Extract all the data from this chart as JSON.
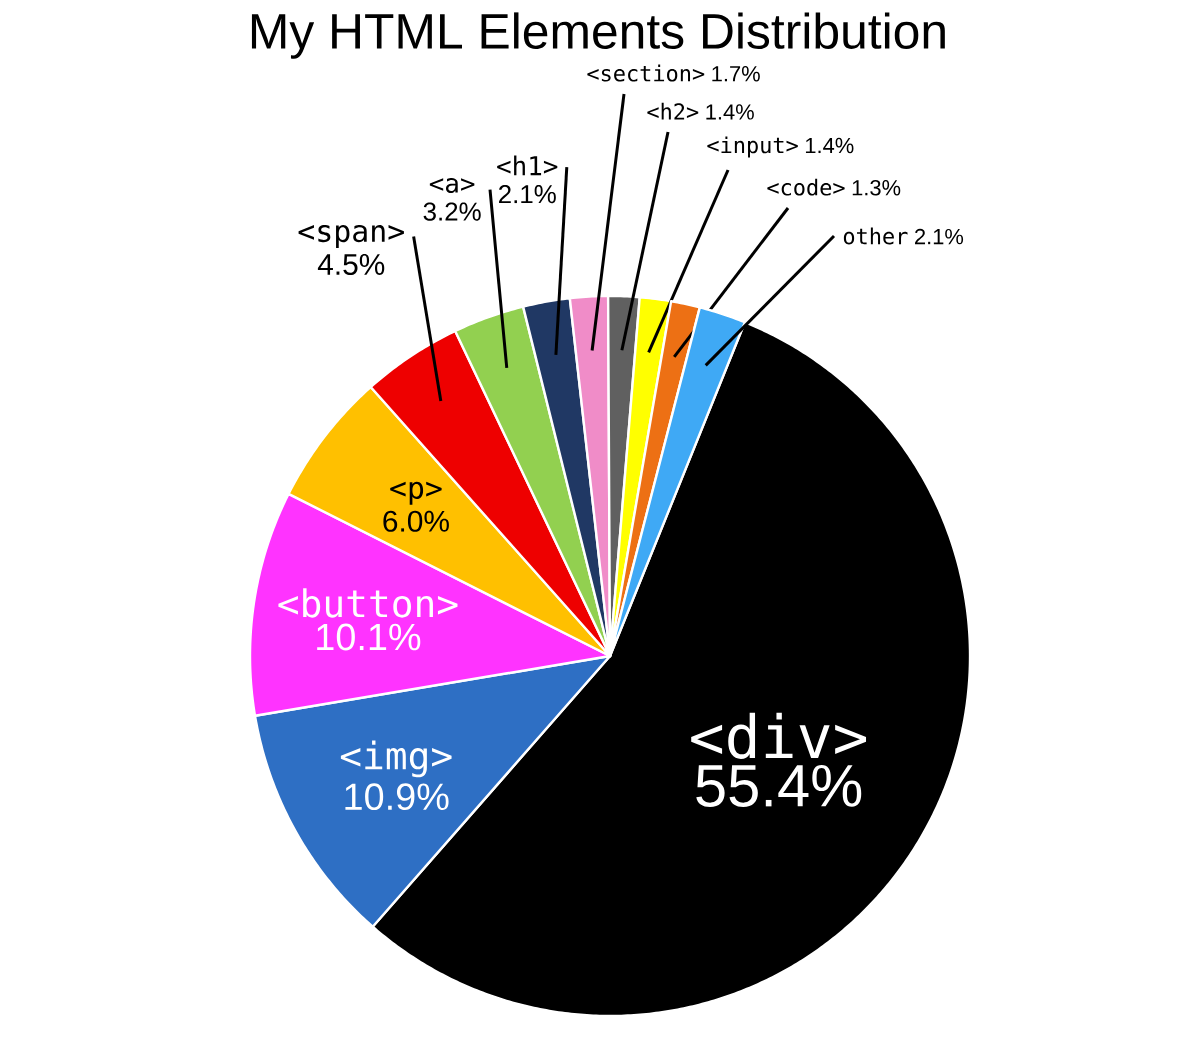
{
  "chart_data": {
    "type": "pie",
    "title": "My HTML Elements Distribution",
    "categories": [
      "<div>",
      "<img>",
      "<button>",
      "<p>",
      "<span>",
      "<a>",
      "<h1>",
      "<section>",
      "<h2>",
      "<input>",
      "<code>",
      "other"
    ],
    "values": [
      55.4,
      10.9,
      10.1,
      6.0,
      4.5,
      3.2,
      2.1,
      1.7,
      1.4,
      1.4,
      1.3,
      2.1
    ],
    "value_labels": [
      "55.4%",
      "10.9%",
      "10.1%",
      "6.0%",
      "4.5%",
      "3.2%",
      "2.1%",
      "1.7%",
      "1.4%",
      "1.4%",
      "1.3%",
      "2.1%"
    ],
    "colors": [
      "#000000",
      "#2e6fc4",
      "#ff33ff",
      "#ffc000",
      "#ee0000",
      "#92d050",
      "#203864",
      "#f08cc8",
      "#606060",
      "#ffff00",
      "#ed7014",
      "#3fa9f5"
    ]
  }
}
